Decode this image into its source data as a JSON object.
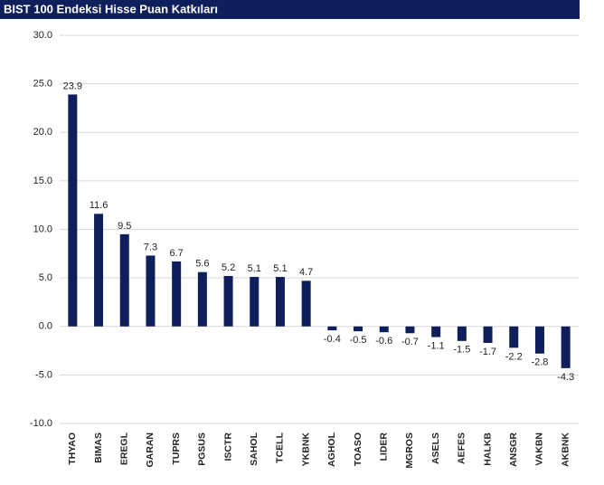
{
  "chart_data": {
    "type": "bar",
    "title": "BIST 100 Endeksi Hisse Puan Katkıları",
    "categories": [
      "THYAO",
      "BIMAS",
      "EREGL",
      "GARAN",
      "TUPRS",
      "PGSUS",
      "ISCTR",
      "SAHOL",
      "TCELL",
      "YKBNK",
      "AGHOL",
      "TOASO",
      "LIDER",
      "MGROS",
      "ASELS",
      "AEFES",
      "HALKB",
      "ANSGR",
      "VAKBN",
      "AKBNK"
    ],
    "values": [
      23.9,
      11.6,
      9.5,
      7.3,
      6.7,
      5.6,
      5.2,
      5.1,
      5.1,
      4.7,
      -0.4,
      -0.5,
      -0.6,
      -0.7,
      -1.1,
      -1.5,
      -1.7,
      -2.2,
      -2.8,
      -4.3
    ],
    "color": "#0f1f5c",
    "ylim": [
      -10,
      30
    ],
    "yticks": [
      {
        "value": -10,
        "label": "-10.0"
      },
      {
        "value": -5,
        "label": "-5.0"
      },
      {
        "value": 0,
        "label": "0.0"
      },
      {
        "value": 5,
        "label": "5.0"
      },
      {
        "value": 10,
        "label": "10.0"
      },
      {
        "value": 15,
        "label": "15.0"
      },
      {
        "value": 20,
        "label": "20.0"
      },
      {
        "value": 25,
        "label": "25.0"
      },
      {
        "value": 30,
        "label": "30.0"
      }
    ],
    "grid": true
  }
}
